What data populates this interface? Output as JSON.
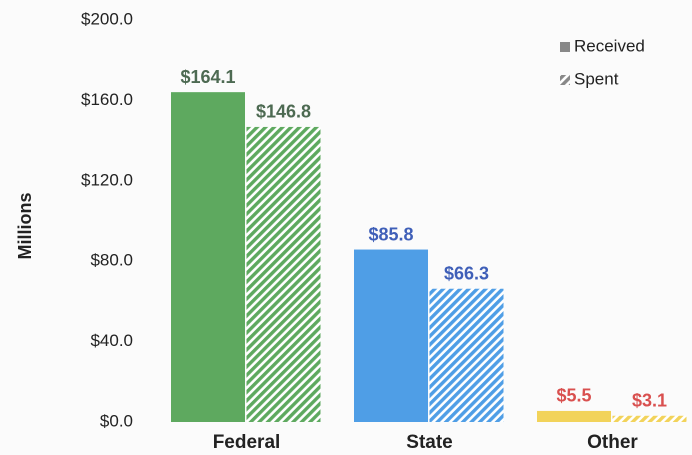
{
  "chart_data": {
    "type": "bar",
    "ylabel": "Millions",
    "categories": [
      "Federal",
      "State",
      "Other"
    ],
    "category_colors": [
      "#5ea95f",
      "#4f9ee6",
      "#f2d35a"
    ],
    "label_colors": [
      "#4d6a52",
      "#3f5fb8",
      "#d9504f"
    ],
    "series": [
      {
        "name": "Received",
        "pattern": "solid",
        "values": [
          164.1,
          85.8,
          5.5
        ],
        "value_labels": [
          "$164.1",
          "$85.8",
          "$5.5"
        ]
      },
      {
        "name": "Spent",
        "pattern": "hatch",
        "values": [
          146.8,
          66.3,
          3.1
        ],
        "value_labels": [
          "$146.8",
          "$66.3",
          "$3.1"
        ]
      }
    ],
    "ylim": [
      0,
      200
    ],
    "yticks": [
      {
        "value": 0,
        "label": "$0.0"
      },
      {
        "value": 40,
        "label": "$40.0"
      },
      {
        "value": 80,
        "label": "$80.0"
      },
      {
        "value": 120,
        "label": "$120.0"
      },
      {
        "value": 160,
        "label": "$160.0"
      },
      {
        "value": 200,
        "label": "$200.0"
      }
    ],
    "grid": false,
    "legend": "upper right"
  }
}
